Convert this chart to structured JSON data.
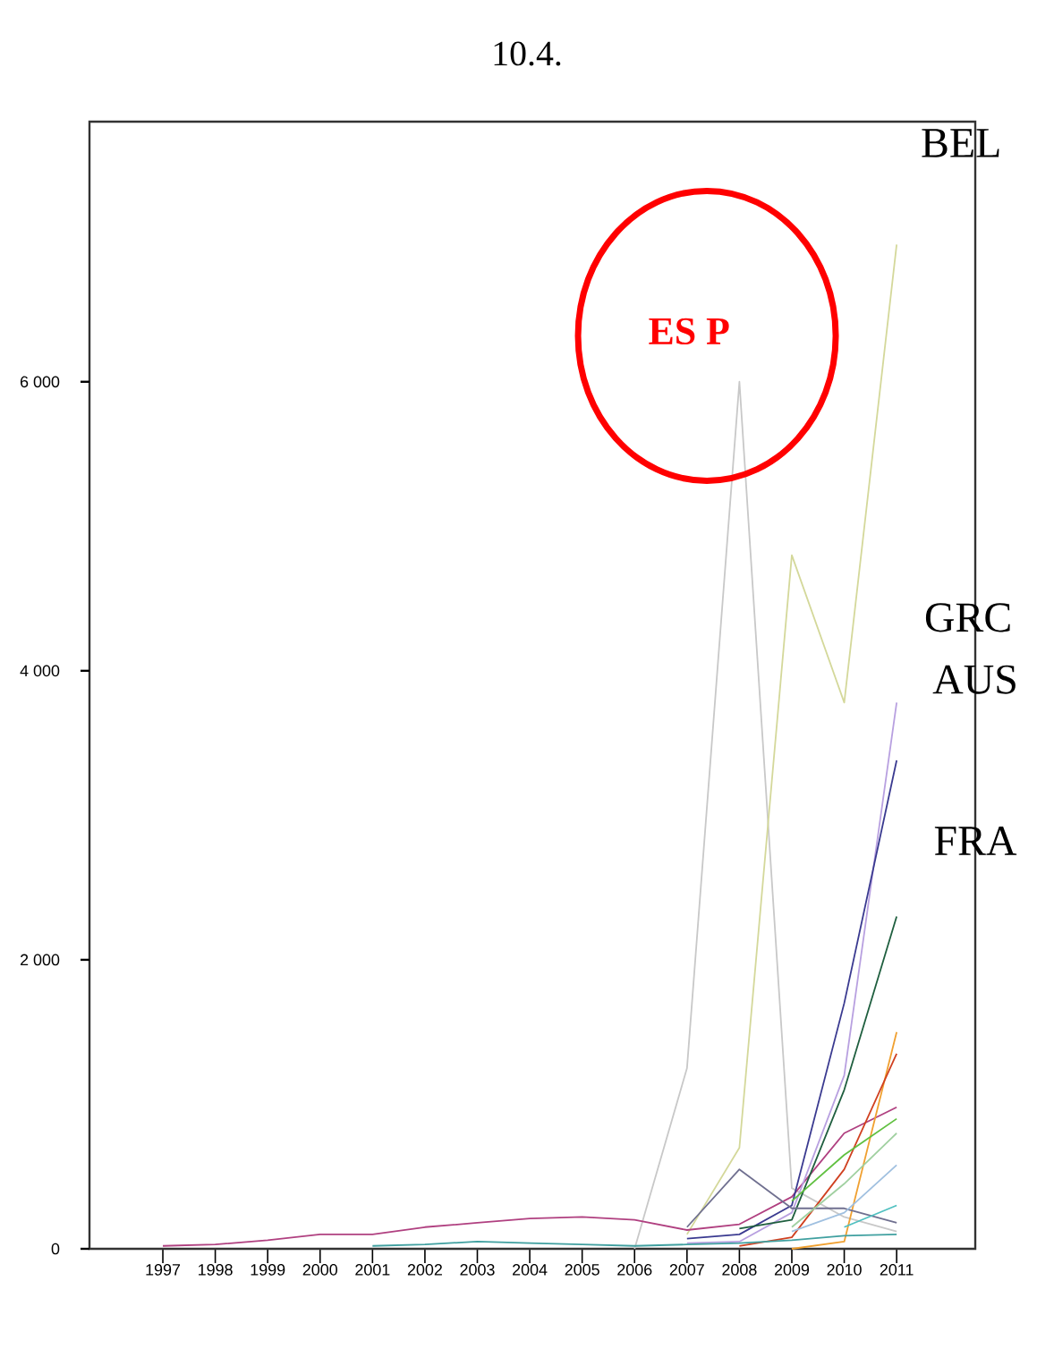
{
  "chart_data": {
    "type": "line",
    "title": "10.4.",
    "x": [
      1997,
      1998,
      1999,
      2000,
      2001,
      2002,
      2003,
      2004,
      2005,
      2006,
      2007,
      2008,
      2009,
      2010,
      2011
    ],
    "series": [
      {
        "color": "#c8c8c8",
        "values": [
          null,
          null,
          null,
          null,
          null,
          null,
          null,
          null,
          null,
          0,
          1250,
          6000,
          420,
          220,
          120
        ]
      },
      {
        "color": "#d4d89a",
        "values": [
          null,
          null,
          null,
          null,
          null,
          null,
          null,
          null,
          null,
          null,
          100,
          700,
          4800,
          3780,
          6950
        ]
      },
      {
        "color": "#b04080",
        "values": [
          20,
          30,
          60,
          100,
          100,
          150,
          180,
          210,
          220,
          200,
          130,
          170,
          360,
          800,
          980
        ]
      },
      {
        "color": "#b8a0e0",
        "values": [
          null,
          null,
          null,
          null,
          null,
          null,
          null,
          null,
          null,
          null,
          40,
          50,
          250,
          1200,
          3780
        ]
      },
      {
        "color": "#3a3a90",
        "values": [
          null,
          null,
          null,
          null,
          null,
          null,
          null,
          null,
          null,
          null,
          70,
          100,
          300,
          1700,
          3380
        ]
      },
      {
        "color": "#1f5f3f",
        "values": [
          null,
          null,
          null,
          null,
          null,
          null,
          null,
          null,
          null,
          null,
          null,
          140,
          200,
          1100,
          2300
        ]
      },
      {
        "color": "#f0a030",
        "values": [
          null,
          null,
          null,
          null,
          null,
          null,
          null,
          null,
          null,
          null,
          null,
          null,
          0,
          50,
          1500
        ]
      },
      {
        "color": "#d04020",
        "values": [
          null,
          null,
          null,
          null,
          null,
          null,
          null,
          null,
          null,
          null,
          null,
          20,
          80,
          550,
          1350
        ]
      },
      {
        "color": "#60c040",
        "values": [
          null,
          null,
          null,
          null,
          null,
          null,
          null,
          null,
          null,
          null,
          null,
          null,
          330,
          650,
          900
        ]
      },
      {
        "color": "#707090",
        "values": [
          null,
          null,
          null,
          null,
          null,
          null,
          null,
          null,
          null,
          null,
          150,
          550,
          280,
          280,
          180
        ]
      },
      {
        "color": "#40a0a0",
        "values": [
          null,
          null,
          null,
          null,
          20,
          30,
          50,
          40,
          30,
          20,
          30,
          40,
          60,
          90,
          100
        ]
      },
      {
        "color": "#a0c0e0",
        "values": [
          null,
          null,
          null,
          null,
          null,
          null,
          null,
          null,
          null,
          null,
          null,
          null,
          120,
          250,
          580
        ]
      },
      {
        "color": "#a0d0a0",
        "values": [
          null,
          null,
          null,
          null,
          null,
          null,
          null,
          null,
          null,
          null,
          null,
          null,
          150,
          450,
          800
        ]
      },
      {
        "color": "#50c0c0",
        "values": [
          null,
          null,
          null,
          null,
          null,
          null,
          null,
          null,
          null,
          null,
          null,
          null,
          null,
          150,
          300
        ]
      }
    ],
    "xlim": [
      1995.6,
      2012.5
    ],
    "ylim": [
      0,
      7800
    ],
    "xticks": [
      1997,
      1998,
      1999,
      2000,
      2001,
      2002,
      2003,
      2004,
      2005,
      2006,
      2007,
      2008,
      2009,
      2010,
      2011
    ],
    "yticks": [
      {
        "value": 0,
        "label": "0"
      },
      {
        "value": 2000,
        "label": "2 000"
      },
      {
        "value": 4000,
        "label": "4 000"
      },
      {
        "value": 6000,
        "label": "6 000"
      }
    ],
    "annotations": [
      "ES P",
      "BEL",
      "GRC",
      "AUS",
      "FRA"
    ],
    "grid": false,
    "marker": "none",
    "line_style": "solid"
  }
}
